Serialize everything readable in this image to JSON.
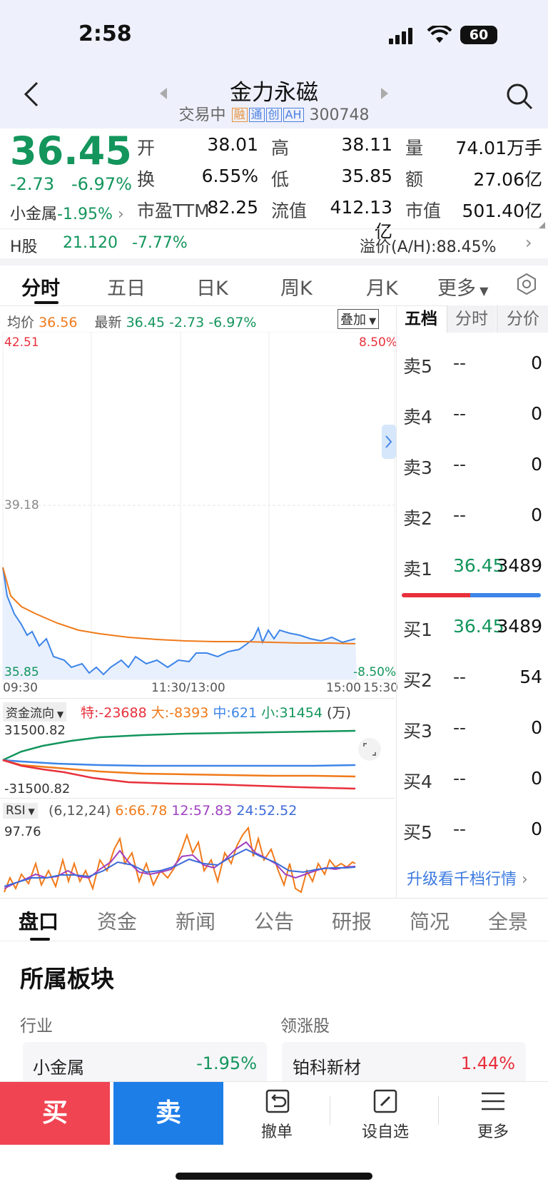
{
  "status": {
    "time": "2:58",
    "battery": "60"
  },
  "header": {
    "title": "金力永磁",
    "status": "交易中",
    "tags": [
      "融",
      "通",
      "创",
      "AH"
    ],
    "code": "300748"
  },
  "quote": {
    "price": "36.45",
    "change": "-2.73",
    "change_pct": "-6.97%",
    "sector_name": "小金属",
    "sector_pct": "-1.95%",
    "open_label": "开",
    "open": "38.01",
    "high_label": "高",
    "high": "38.11",
    "vol_label": "量",
    "vol": "74.01万手",
    "turnover_label": "换",
    "turnover": "6.55%",
    "low_label": "低",
    "low": "35.85",
    "amount_label": "额",
    "amount": "27.06亿",
    "pe_label": "市盈TTM",
    "pe": "82.25",
    "float_label": "流值",
    "float_cap": "412.13亿",
    "mcap_label": "市值",
    "mcap": "501.40亿"
  },
  "hshare": {
    "label": "H股",
    "price": "21.120",
    "pct": "-7.77%",
    "premium": "溢价(A/H):88.45%"
  },
  "tabs": [
    "分时",
    "五日",
    "日K",
    "周K",
    "月K",
    "更多"
  ],
  "chart": {
    "avg_label": "均价",
    "avg": "36.56",
    "latest_label": "最新",
    "latest": "36.45",
    "latest_chg": "-2.73",
    "latest_pct": "-6.97%",
    "overlay_btn": "叠加",
    "y_top": "42.51",
    "y_mid": "39.18",
    "y_bot": "35.85",
    "pct_top": "8.50%",
    "pct_bot": "-8.50%",
    "x_labels": [
      "09:30",
      "11:30/13:00",
      "15:00",
      "15:30"
    ]
  },
  "capital": {
    "label": "资金流向",
    "super": "特:-23688",
    "large": "大:-8393",
    "medium": "中:621",
    "small": "小:31454",
    "unit": "(万)",
    "top": "31500.82",
    "bottom": "-31500.82"
  },
  "rsi": {
    "label": "RSI",
    "params": "(6,12,24)",
    "r6": "6:66.78",
    "r12": "12:57.83",
    "r24": "24:52.52",
    "top": "97.76"
  },
  "orderbook": {
    "tabs": [
      "五档",
      "分时",
      "分价"
    ],
    "asks": [
      {
        "label": "卖5",
        "price": "--",
        "vol": "0"
      },
      {
        "label": "卖4",
        "price": "--",
        "vol": "0"
      },
      {
        "label": "卖3",
        "price": "--",
        "vol": "0"
      },
      {
        "label": "卖2",
        "price": "--",
        "vol": "0"
      },
      {
        "label": "卖1",
        "price": "36.45",
        "vol": "3489"
      }
    ],
    "bids": [
      {
        "label": "买1",
        "price": "36.45",
        "vol": "3489"
      },
      {
        "label": "买2",
        "price": "--",
        "vol": "54"
      },
      {
        "label": "买3",
        "price": "--",
        "vol": "0"
      },
      {
        "label": "买4",
        "price": "--",
        "vol": "0"
      },
      {
        "label": "买5",
        "price": "--",
        "vol": "0"
      }
    ],
    "upgrade": "升级看千档行情"
  },
  "bottom_tabs": [
    "盘口",
    "资金",
    "新闻",
    "公告",
    "研报",
    "简况",
    "全景"
  ],
  "sector": {
    "title": "所属板块",
    "industry_label": "行业",
    "leader_label": "领涨股",
    "industry_name": "小金属",
    "industry_pct": "-1.95%",
    "leader_name": "铂科新材",
    "leader_pct": "1.44%"
  },
  "toolbar": {
    "buy": "买",
    "sell": "卖",
    "cancel": "撤单",
    "watch": "设自选",
    "more": "更多"
  }
}
